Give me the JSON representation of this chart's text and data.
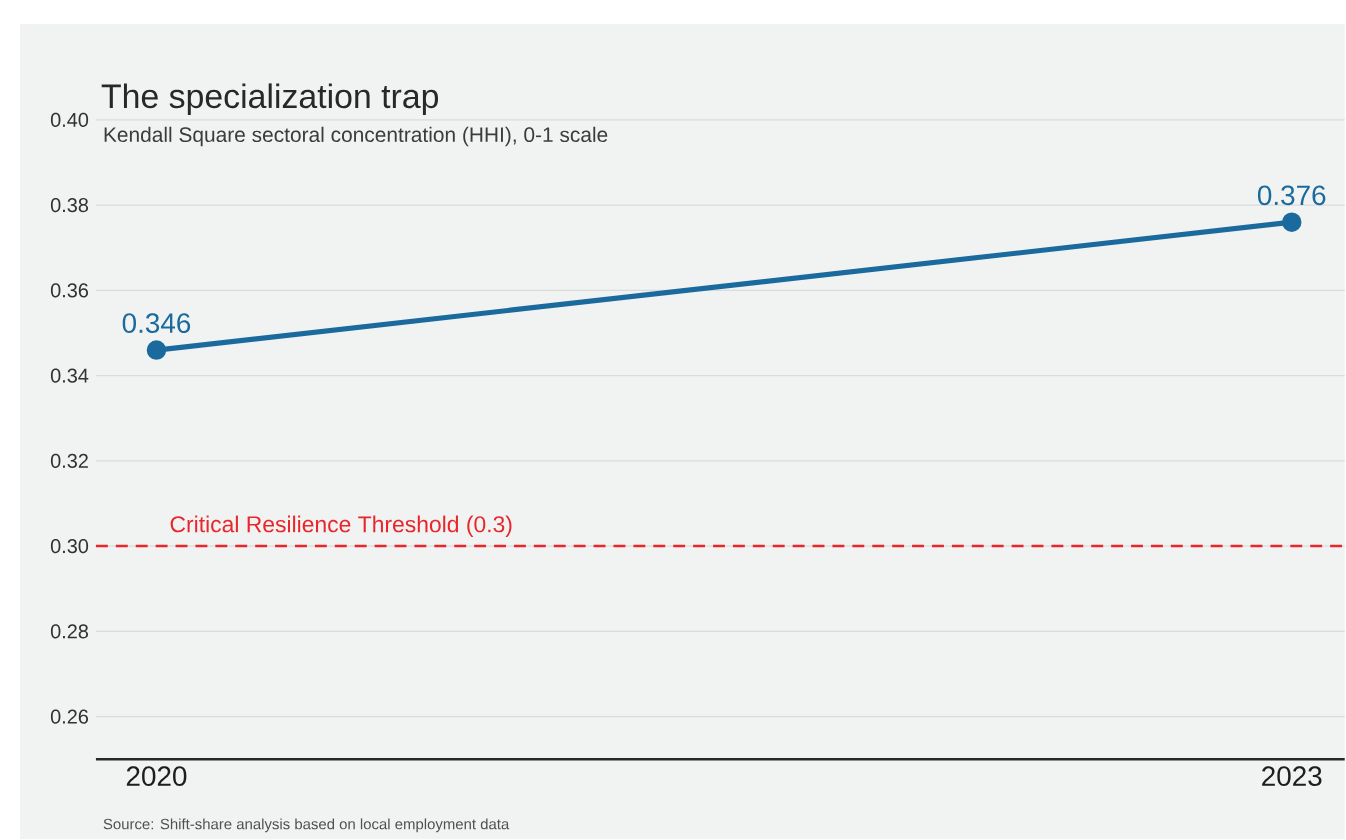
{
  "chart_data": {
    "type": "line",
    "title": "The specialization trap",
    "subtitle": "Kendall Square sectoral concentration (HHI), 0-1 scale",
    "x": [
      2020,
      2023
    ],
    "values": [
      0.346,
      0.376
    ],
    "color": "#1b6a9e",
    "xlim": [
      2019.84,
      2023.14
    ],
    "xticks": [
      2020,
      2023
    ],
    "ylim": [
      0.25,
      0.4
    ],
    "yticks": [
      {
        "value": 0.26,
        "label": "0.26"
      },
      {
        "value": 0.28,
        "label": "0.28"
      },
      {
        "value": 0.3,
        "label": "0.30"
      },
      {
        "value": 0.32,
        "label": "0.32"
      },
      {
        "value": 0.34,
        "label": "0.34"
      },
      {
        "value": 0.36,
        "label": "0.36"
      },
      {
        "value": 0.38,
        "label": "0.38"
      },
      {
        "value": 0.4,
        "label": "0.40"
      }
    ],
    "grid": "y",
    "marker": "circle",
    "line_style": "solid",
    "data_labels": true,
    "ref_lines": [
      {
        "axis": "y",
        "value": 0.3,
        "label": "Critical Resilience Threshold (0.3)",
        "color": "#e8262b",
        "line_style": "dashed"
      }
    ],
    "annotations": [
      "Source: Shift-share analysis based on local employment data"
    ]
  }
}
